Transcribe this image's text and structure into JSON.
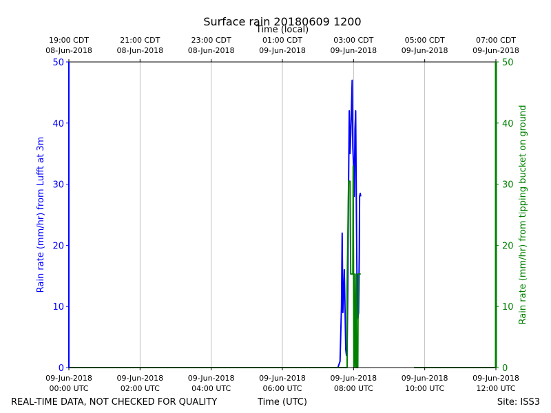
{
  "chart_data": {
    "type": "line",
    "title": "Surface rain 20180609 1200",
    "xlabel_bottom": "Time (UTC)",
    "xlabel_top": "Time (local)",
    "ylabel_left": "Rain rate (mm/hr) from Lufft at 3m",
    "ylabel_right": "Rain rate (mm/hr) from tipping bucket on ground",
    "footer_left": "REAL-TIME DATA, NOT CHECKED FOR QUALITY",
    "footer_right": "Site: ISS3",
    "xlim_hours": [
      0,
      12
    ],
    "ylim": [
      0,
      50
    ],
    "grid": "x-only",
    "x_ticks": [
      {
        "h": 0,
        "utc": [
          "09-Jun-2018",
          "00:00 UTC"
        ],
        "local": [
          "19:00 CDT",
          "08-Jun-2018"
        ]
      },
      {
        "h": 2,
        "utc": [
          "09-Jun-2018",
          "02:00 UTC"
        ],
        "local": [
          "21:00 CDT",
          "08-Jun-2018"
        ]
      },
      {
        "h": 4,
        "utc": [
          "09-Jun-2018",
          "04:00 UTC"
        ],
        "local": [
          "23:00 CDT",
          "08-Jun-2018"
        ]
      },
      {
        "h": 6,
        "utc": [
          "09-Jun-2018",
          "06:00 UTC"
        ],
        "local": [
          "01:00 CDT",
          "09-Jun-2018"
        ]
      },
      {
        "h": 8,
        "utc": [
          "09-Jun-2018",
          "08:00 UTC"
        ],
        "local": [
          "03:00 CDT",
          "09-Jun-2018"
        ]
      },
      {
        "h": 10,
        "utc": [
          "09-Jun-2018",
          "10:00 UTC"
        ],
        "local": [
          "05:00 CDT",
          "09-Jun-2018"
        ]
      },
      {
        "h": 12,
        "utc": [
          "09-Jun-2018",
          "12:00 UTC"
        ],
        "local": [
          "07:00 CDT",
          "09-Jun-2018"
        ]
      }
    ],
    "y_ticks": [
      0,
      10,
      20,
      30,
      40,
      50
    ],
    "series": [
      {
        "color": "#0000ff",
        "axis": "left",
        "points": [
          [
            0.0,
            50
          ],
          [
            0.0,
            0
          ],
          [
            7.56,
            0
          ],
          [
            7.62,
            1
          ],
          [
            7.66,
            10
          ],
          [
            7.68,
            22
          ],
          [
            7.7,
            9
          ],
          [
            7.72,
            12
          ],
          [
            7.74,
            16
          ],
          [
            7.76,
            10
          ],
          [
            7.78,
            3
          ],
          [
            7.8,
            2
          ],
          [
            7.82,
            3
          ],
          [
            7.84,
            15
          ],
          [
            7.86,
            30
          ],
          [
            7.88,
            42
          ],
          [
            7.9,
            35
          ],
          [
            7.92,
            38
          ],
          [
            7.94,
            42
          ],
          [
            7.96,
            47
          ],
          [
            7.98,
            36
          ],
          [
            8.0,
            33
          ],
          [
            8.02,
            28
          ],
          [
            8.04,
            39
          ],
          [
            8.06,
            42
          ],
          [
            8.08,
            25
          ],
          [
            8.1,
            12
          ],
          [
            8.12,
            8
          ],
          [
            8.14,
            9
          ],
          [
            8.16,
            18
          ],
          [
            8.17,
            28
          ],
          [
            8.19,
            28.5
          ],
          [
            8.2,
            28
          ]
        ]
      },
      {
        "color": "#008000",
        "axis": "right",
        "segments": [
          [
            [
              0,
              0
            ],
            [
              7.82,
              0
            ],
            [
              7.82,
              13
            ],
            [
              7.86,
              30.5
            ],
            [
              7.9,
              30.5
            ],
            [
              7.92,
              15.3
            ],
            [
              7.98,
              15.3
            ],
            [
              7.99,
              33
            ],
            [
              8.0,
              15.3
            ],
            [
              8.01,
              0
            ],
            [
              8.02,
              15.3
            ],
            [
              8.05,
              0
            ],
            [
              8.07,
              15.3
            ],
            [
              8.09,
              0
            ],
            [
              8.12,
              0
            ],
            [
              8.13,
              15.3
            ],
            [
              8.2,
              15.3
            ]
          ],
          [
            [
              9.7,
              0
            ],
            [
              12,
              0
            ],
            [
              12,
              50
            ]
          ]
        ]
      }
    ]
  }
}
